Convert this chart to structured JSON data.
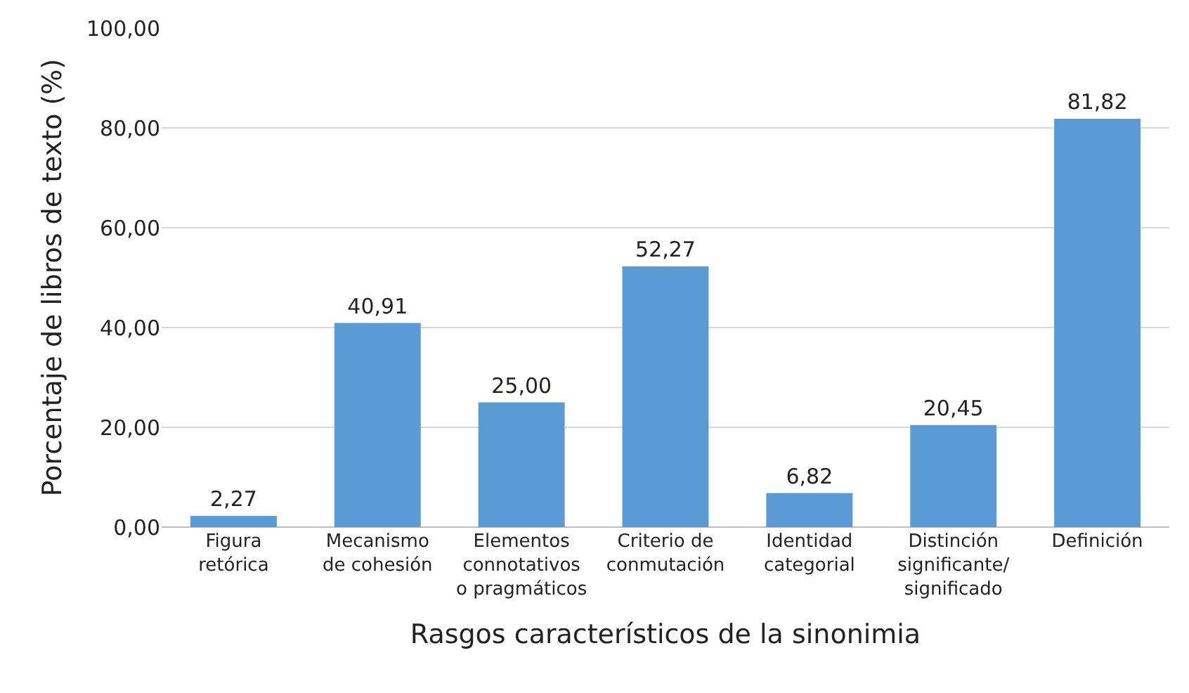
{
  "chart_data": {
    "type": "bar",
    "xlabel": "Rasgos característicos de la sinonimia",
    "ylabel": "Porcentaje de libros de texto (%)",
    "categories": [
      "Figura\nretórica",
      "Mecanismo\nde cohesión",
      "Elementos\nconnotativos\no pragmáticos",
      "Criterio de\nconmutación",
      "Identidad\ncategorial",
      "Distinción\nsignificante/\nsignificado",
      "Definición"
    ],
    "values": [
      2.27,
      40.91,
      25.0,
      52.27,
      6.82,
      20.45,
      81.82
    ],
    "value_labels": [
      "2,27",
      "40,91",
      "25,00",
      "52,27",
      "6,82",
      "20,45",
      "81,82"
    ],
    "color": "#5b9bd5",
    "ylim": [
      0,
      100
    ],
    "yticks": [
      {
        "value": 0,
        "label": "0,00"
      },
      {
        "value": 20,
        "label": "20,00"
      },
      {
        "value": 40,
        "label": "40,00"
      },
      {
        "value": 60,
        "label": "60,00"
      },
      {
        "value": 80,
        "label": "80,00"
      },
      {
        "value": 100,
        "label": "100,00"
      }
    ],
    "grid": "y"
  }
}
